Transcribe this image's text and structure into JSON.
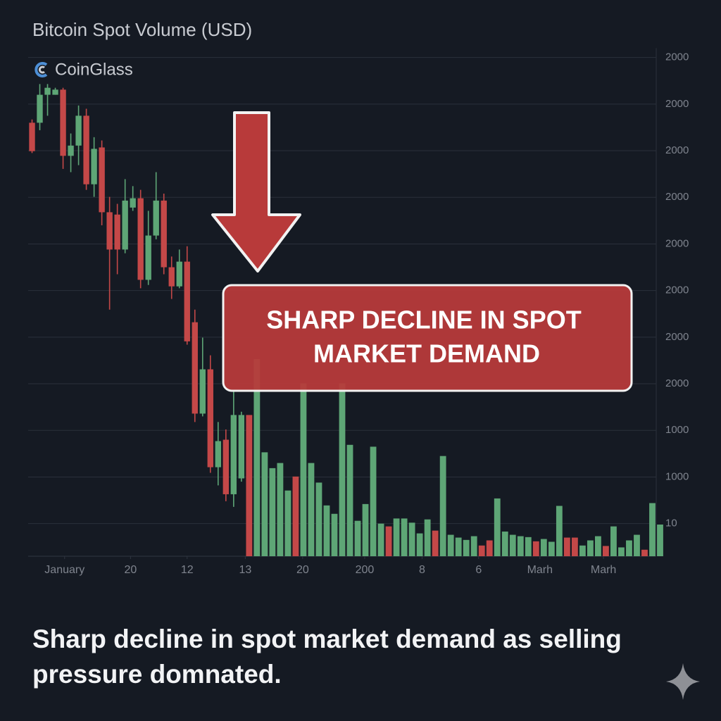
{
  "chart_data": {
    "type": "candlestick",
    "title": "Bitcoin Spot Volume (USD)",
    "source": "CoinGlass",
    "annotation": [
      "SHARP DECLINE IN SPOT",
      "MARKET DEMAND"
    ],
    "caption": [
      "Sharp decline in spot market demand as selling",
      "pressure domnated."
    ],
    "up_color": "#5ea676",
    "down_color": "#c44848",
    "grid": true,
    "xlim": [
      0,
      81
    ],
    "xticks": [
      {
        "value": 4.7,
        "label": "January"
      },
      {
        "value": 13.2,
        "label": "20"
      },
      {
        "value": 20.5,
        "label": "12"
      },
      {
        "value": 28.0,
        "label": "13"
      },
      {
        "value": 35.4,
        "label": "20"
      },
      {
        "value": 43.4,
        "label": "200"
      },
      {
        "value": 50.8,
        "label": "8"
      },
      {
        "value": 58.1,
        "label": "6"
      },
      {
        "value": 66.0,
        "label": "Marh"
      },
      {
        "value": 74.2,
        "label": "Marh"
      }
    ],
    "ylim": [
      0.3,
      11.2
    ],
    "yticks": [
      {
        "value": 11,
        "label": "2000"
      },
      {
        "value": 10,
        "label": "2000"
      },
      {
        "value": 9,
        "label": "2000"
      },
      {
        "value": 8,
        "label": "2000"
      },
      {
        "value": 7,
        "label": "2000"
      },
      {
        "value": 6,
        "label": "2000"
      },
      {
        "value": 5,
        "label": "2000"
      },
      {
        "value": 4,
        "label": "2000"
      },
      {
        "value": 3,
        "label": "1000"
      },
      {
        "value": 2,
        "label": "1000"
      },
      {
        "value": 1,
        "label": "10"
      }
    ],
    "candles": {
      "open": [
        9.6,
        9.6,
        10.2,
        10.2,
        10.31,
        8.89,
        9.11,
        9.75,
        8.28,
        9.07,
        7.68,
        7.63,
        6.88,
        7.78,
        7.98,
        6.23,
        7.18,
        7.93,
        6.5,
        6.09,
        6.62,
        5.32,
        3.36,
        4.31,
        2.21,
        2.8,
        1.63,
        1.97
      ],
      "high": [
        9.67,
        10.43,
        10.43,
        10.35,
        10.35,
        9.37,
        9.97,
        9.9,
        9.29,
        9.22,
        8.01,
        7.86,
        8.39,
        8.24,
        8.16,
        7.71,
        8.54,
        8.08,
        6.73,
        6.88,
        6.95,
        5.59,
        4.99,
        4.61,
        3.18,
        3.02,
        3.85,
        3.4
      ],
      "low": [
        8.95,
        9.44,
        9.75,
        10.2,
        8.61,
        8.54,
        8.69,
        8.16,
        8.01,
        7.4,
        5.59,
        6.35,
        6.8,
        7.71,
        6.05,
        6.12,
        7.1,
        6.35,
        5.82,
        6.05,
        4.84,
        3.18,
        3.3,
        2.09,
        1.82,
        1.48,
        1.36,
        1.9
      ],
      "close": [
        8.99,
        10.2,
        10.35,
        10.31,
        8.89,
        9.11,
        9.75,
        8.28,
        9.04,
        7.68,
        6.88,
        6.88,
        7.93,
        7.98,
        6.23,
        7.18,
        7.93,
        6.5,
        6.09,
        6.62,
        4.91,
        3.36,
        4.31,
        2.21,
        2.77,
        1.63,
        3.33,
        3.33
      ]
    },
    "volume": {
      "values": [
        3.33,
        4.53,
        2.53,
        2.19,
        2.3,
        1.71,
        2.01,
        4.01,
        2.3,
        1.88,
        1.39,
        1.21,
        4.01,
        2.69,
        1.06,
        1.42,
        2.65,
        1.0,
        0.94,
        1.11,
        1.11,
        1.02,
        0.79,
        1.09,
        0.85,
        2.45,
        0.76,
        0.7,
        0.65,
        0.73,
        0.53,
        0.64,
        1.54,
        0.83,
        0.76,
        0.73,
        0.71,
        0.62,
        0.67,
        0.61,
        1.38,
        0.7,
        0.7,
        0.53,
        0.64,
        0.73,
        0.52,
        0.94,
        0.49,
        0.64,
        0.76,
        0.44,
        1.44,
        0.98
      ],
      "down": [
        true,
        false,
        false,
        false,
        false,
        false,
        true,
        false,
        false,
        false,
        false,
        false,
        false,
        false,
        false,
        false,
        false,
        false,
        true,
        false,
        false,
        false,
        false,
        false,
        true,
        false,
        false,
        false,
        false,
        false,
        true,
        true,
        false,
        false,
        false,
        false,
        false,
        true,
        false,
        false,
        false,
        true,
        true,
        false,
        false,
        false,
        true,
        false,
        false,
        false,
        false,
        true,
        false,
        false
      ]
    }
  }
}
